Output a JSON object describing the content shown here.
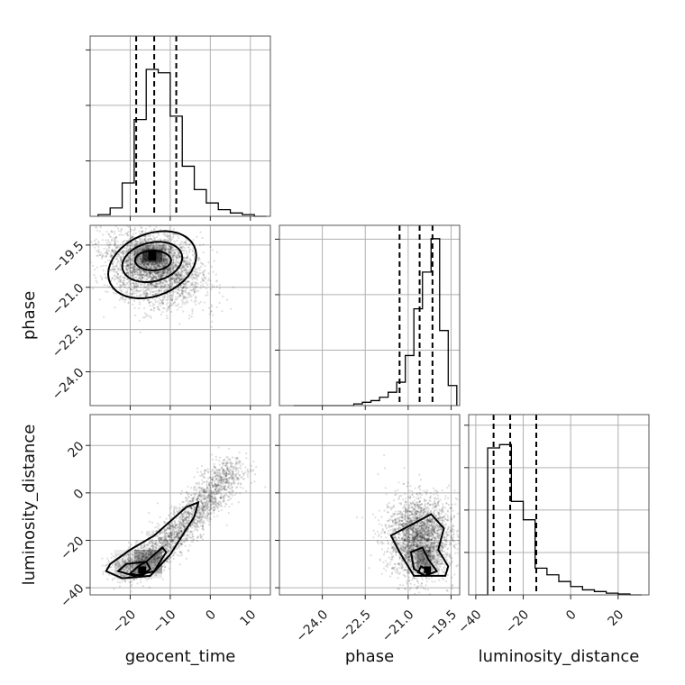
{
  "chart_data": [
    {
      "panel": "geocent_time-marginal",
      "type": "histogram",
      "xlim": [
        -30,
        15
      ],
      "bins": [
        -28,
        -25,
        -22,
        -19,
        -16,
        -13,
        -10,
        -7,
        -4,
        -1,
        2,
        5,
        8,
        11
      ],
      "values": [
        0.01,
        0.05,
        0.2,
        0.58,
        0.88,
        0.86,
        0.6,
        0.3,
        0.16,
        0.08,
        0.04,
        0.02,
        0.01,
        0.0
      ],
      "quantiles": [
        -18.5,
        -14.0,
        -8.5
      ]
    },
    {
      "panel": "phase-vs-geocent_time",
      "type": "scatter",
      "xlim": [
        -30,
        15
      ],
      "ylim": [
        -25.2,
        -18.8
      ],
      "center": [
        -14.5,
        -20.0
      ],
      "spread": [
        5.5,
        0.75
      ],
      "yticks": [
        "−19.5",
        "−21.0",
        "−22.5",
        "−24.0"
      ]
    },
    {
      "panel": "phase-marginal",
      "type": "histogram",
      "xlim": [
        -25.5,
        -19.2
      ],
      "bins": [
        -25.0,
        -24.7,
        -24.4,
        -24.1,
        -23.8,
        -23.5,
        -23.2,
        -22.9,
        -22.6,
        -22.3,
        -22.0,
        -21.7,
        -21.4,
        -21.1,
        -20.8,
        -20.5,
        -20.2,
        -19.9,
        -19.6
      ],
      "values": [
        0.0,
        0.0,
        0.0,
        0.0,
        0.0,
        0.0,
        0.0,
        0.01,
        0.02,
        0.03,
        0.05,
        0.08,
        0.14,
        0.3,
        0.58,
        0.8,
        1.0,
        0.45,
        0.12
      ],
      "quantiles": [
        -21.3,
        -20.6,
        -20.15
      ]
    },
    {
      "panel": "luminosity_distance-vs-geocent_time",
      "type": "scatter",
      "xlim": [
        -30,
        15
      ],
      "ylim": [
        -43,
        33
      ],
      "trend": {
        "from": [
          -22,
          -32
        ],
        "to": [
          -2,
          -2
        ]
      },
      "yticks": [
        "20",
        "0",
        "−20",
        "−40"
      ]
    },
    {
      "panel": "luminosity_distance-vs-phase",
      "type": "scatter",
      "xlim": [
        -25.5,
        -19.2
      ],
      "ylim": [
        -43,
        33
      ],
      "center": [
        -20.4,
        -24
      ],
      "spread": [
        0.55,
        8
      ]
    },
    {
      "panel": "luminosity_distance-marginal",
      "type": "histogram",
      "xlim": [
        -43,
        33
      ],
      "bins": [
        -40,
        -35,
        -30,
        -25,
        -20,
        -15,
        -10,
        -5,
        0,
        5,
        10,
        15,
        20,
        25
      ],
      "values": [
        0.0,
        0.88,
        0.9,
        0.56,
        0.45,
        0.16,
        0.12,
        0.08,
        0.05,
        0.03,
        0.02,
        0.01,
        0.005,
        0.0
      ],
      "quantiles": [
        -32.5,
        -25.5,
        -14.5
      ]
    }
  ],
  "axes": {
    "x_labels": [
      "geocent_time",
      "phase",
      "luminosity_distance"
    ],
    "y_labels": [
      "phase",
      "luminosity_distance"
    ],
    "geocent_ticks": [
      "−20",
      "−10",
      "0",
      "10"
    ],
    "phase_ticks": [
      "−24.0",
      "−22.5",
      "−21.0",
      "−19.5"
    ],
    "lumdist_ticks": [
      "−40",
      "−20",
      "0",
      "20"
    ]
  },
  "style": {
    "point_color": "#000000",
    "hist_color": "#000000",
    "grid": true
  }
}
